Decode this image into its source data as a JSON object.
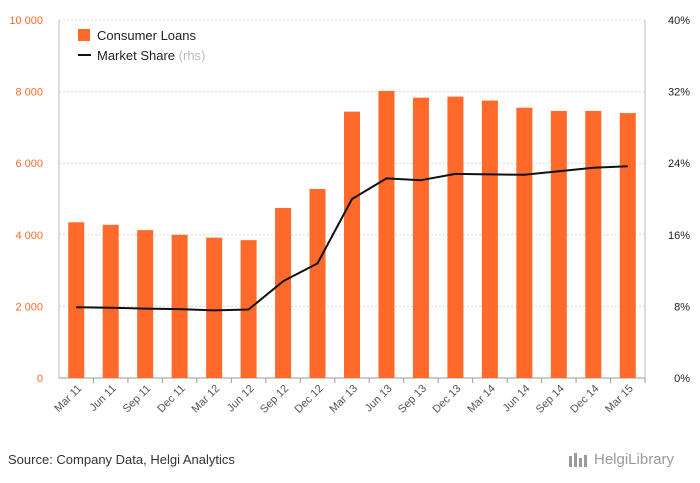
{
  "chart_data": {
    "type": "bar+line",
    "categories": [
      "Mar 11",
      "Jun 11",
      "Sep 11",
      "Dec 11",
      "Mar 12",
      "Jun 12",
      "Sep 12",
      "Dec 12",
      "Mar 13",
      "Jun 13",
      "Sep 13",
      "Dec 13",
      "Mar 14",
      "Jun 14",
      "Sep 14",
      "Dec 14",
      "Mar 15"
    ],
    "series": [
      {
        "name": "Consumer Loans",
        "type": "bar",
        "axis": "left",
        "values": [
          4350,
          4280,
          4130,
          4000,
          3920,
          3850,
          4750,
          5280,
          7440,
          8020,
          7830,
          7860,
          7750,
          7550,
          7460,
          7460,
          7400
        ]
      },
      {
        "name": "Market Share",
        "type": "line",
        "axis": "right",
        "values": [
          7.9,
          7.85,
          7.75,
          7.7,
          7.55,
          7.65,
          10.8,
          12.8,
          20.0,
          22.3,
          22.1,
          22.8,
          22.75,
          22.7,
          23.1,
          23.5,
          23.65
        ]
      }
    ],
    "legend": [
      {
        "label": "Consumer Loans",
        "suffix": ""
      },
      {
        "label": "Market Share",
        "suffix": "(rhs)"
      }
    ],
    "left_axis": {
      "ticks": [
        "0",
        "2 000",
        "4 000",
        "6 000",
        "8 000",
        "10 000"
      ],
      "min": 0,
      "max": 10000
    },
    "right_axis": {
      "ticks": [
        "0%",
        "8%",
        "16%",
        "24%",
        "32%",
        "40%"
      ],
      "min": 0,
      "max": 40
    },
    "legend_position": "top-left"
  },
  "colors": {
    "bar": "#ff6a2a",
    "line": "#111111",
    "left_tick": "#ff6a2a",
    "right_tick": "#222222"
  },
  "source": "Source: Company Data, Helgi Analytics",
  "logo": {
    "text": "HelgiLibrary"
  }
}
